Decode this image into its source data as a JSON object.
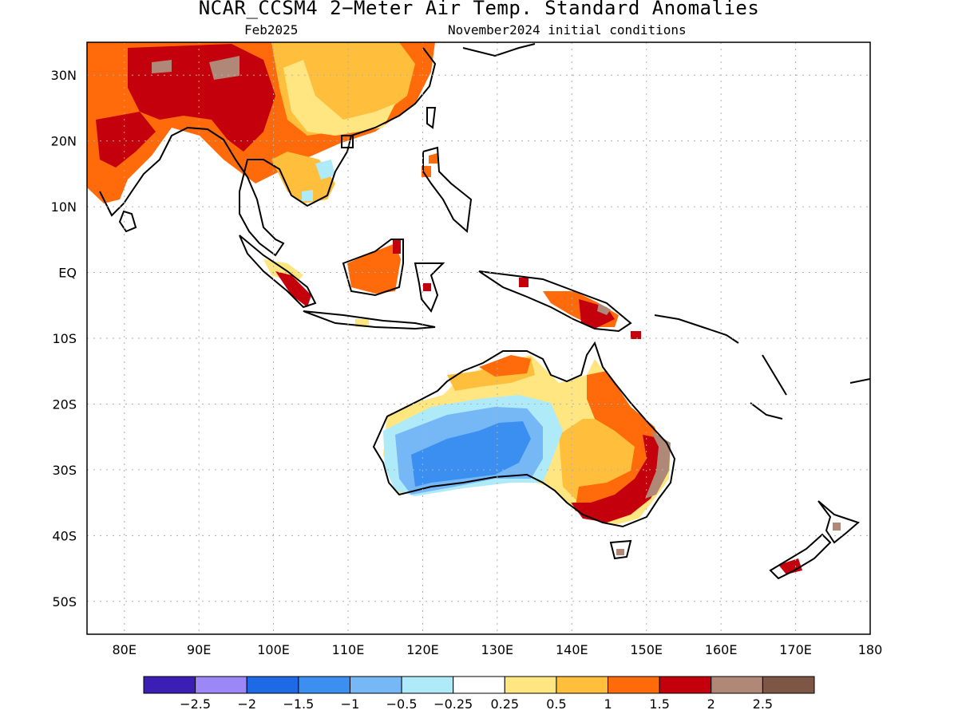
{
  "title": "NCAR_CCSM4 2−Meter Air Temp. Standard Anomalies",
  "subtitle_left": "Feb2025",
  "subtitle_right": "November2024 initial conditions",
  "lat_labels": [
    "30N",
    "20N",
    "10N",
    "EQ",
    "10S",
    "20S",
    "30S",
    "40S",
    "50S"
  ],
  "lat_values": [
    30,
    20,
    10,
    0,
    -10,
    -20,
    -30,
    -40,
    -50
  ],
  "lon_labels": [
    "80E",
    "90E",
    "100E",
    "110E",
    "120E",
    "130E",
    "140E",
    "150E",
    "160E",
    "170E",
    "180"
  ],
  "lon_values": [
    80,
    90,
    100,
    110,
    120,
    130,
    140,
    150,
    160,
    170,
    180
  ],
  "map_extent": {
    "lon_min": 75,
    "lon_max": 180,
    "lat_min": -55,
    "lat_max": 35
  },
  "colorbar": {
    "colors": [
      "#3b1fb5",
      "#9b87f5",
      "#1e6ae6",
      "#3b8ff0",
      "#76b7f5",
      "#aeeaf7",
      "#ffffff",
      "#ffe680",
      "#ffbe3c",
      "#ff6a0a",
      "#c4000c",
      "#b08878",
      "#7d5646"
    ],
    "labels": [
      "−2.5",
      "−2",
      "−1.5",
      "−1",
      "−0.5",
      "−0.25",
      "0.25",
      "0.5",
      "1",
      "1.5",
      "2",
      "2.5"
    ]
  }
}
